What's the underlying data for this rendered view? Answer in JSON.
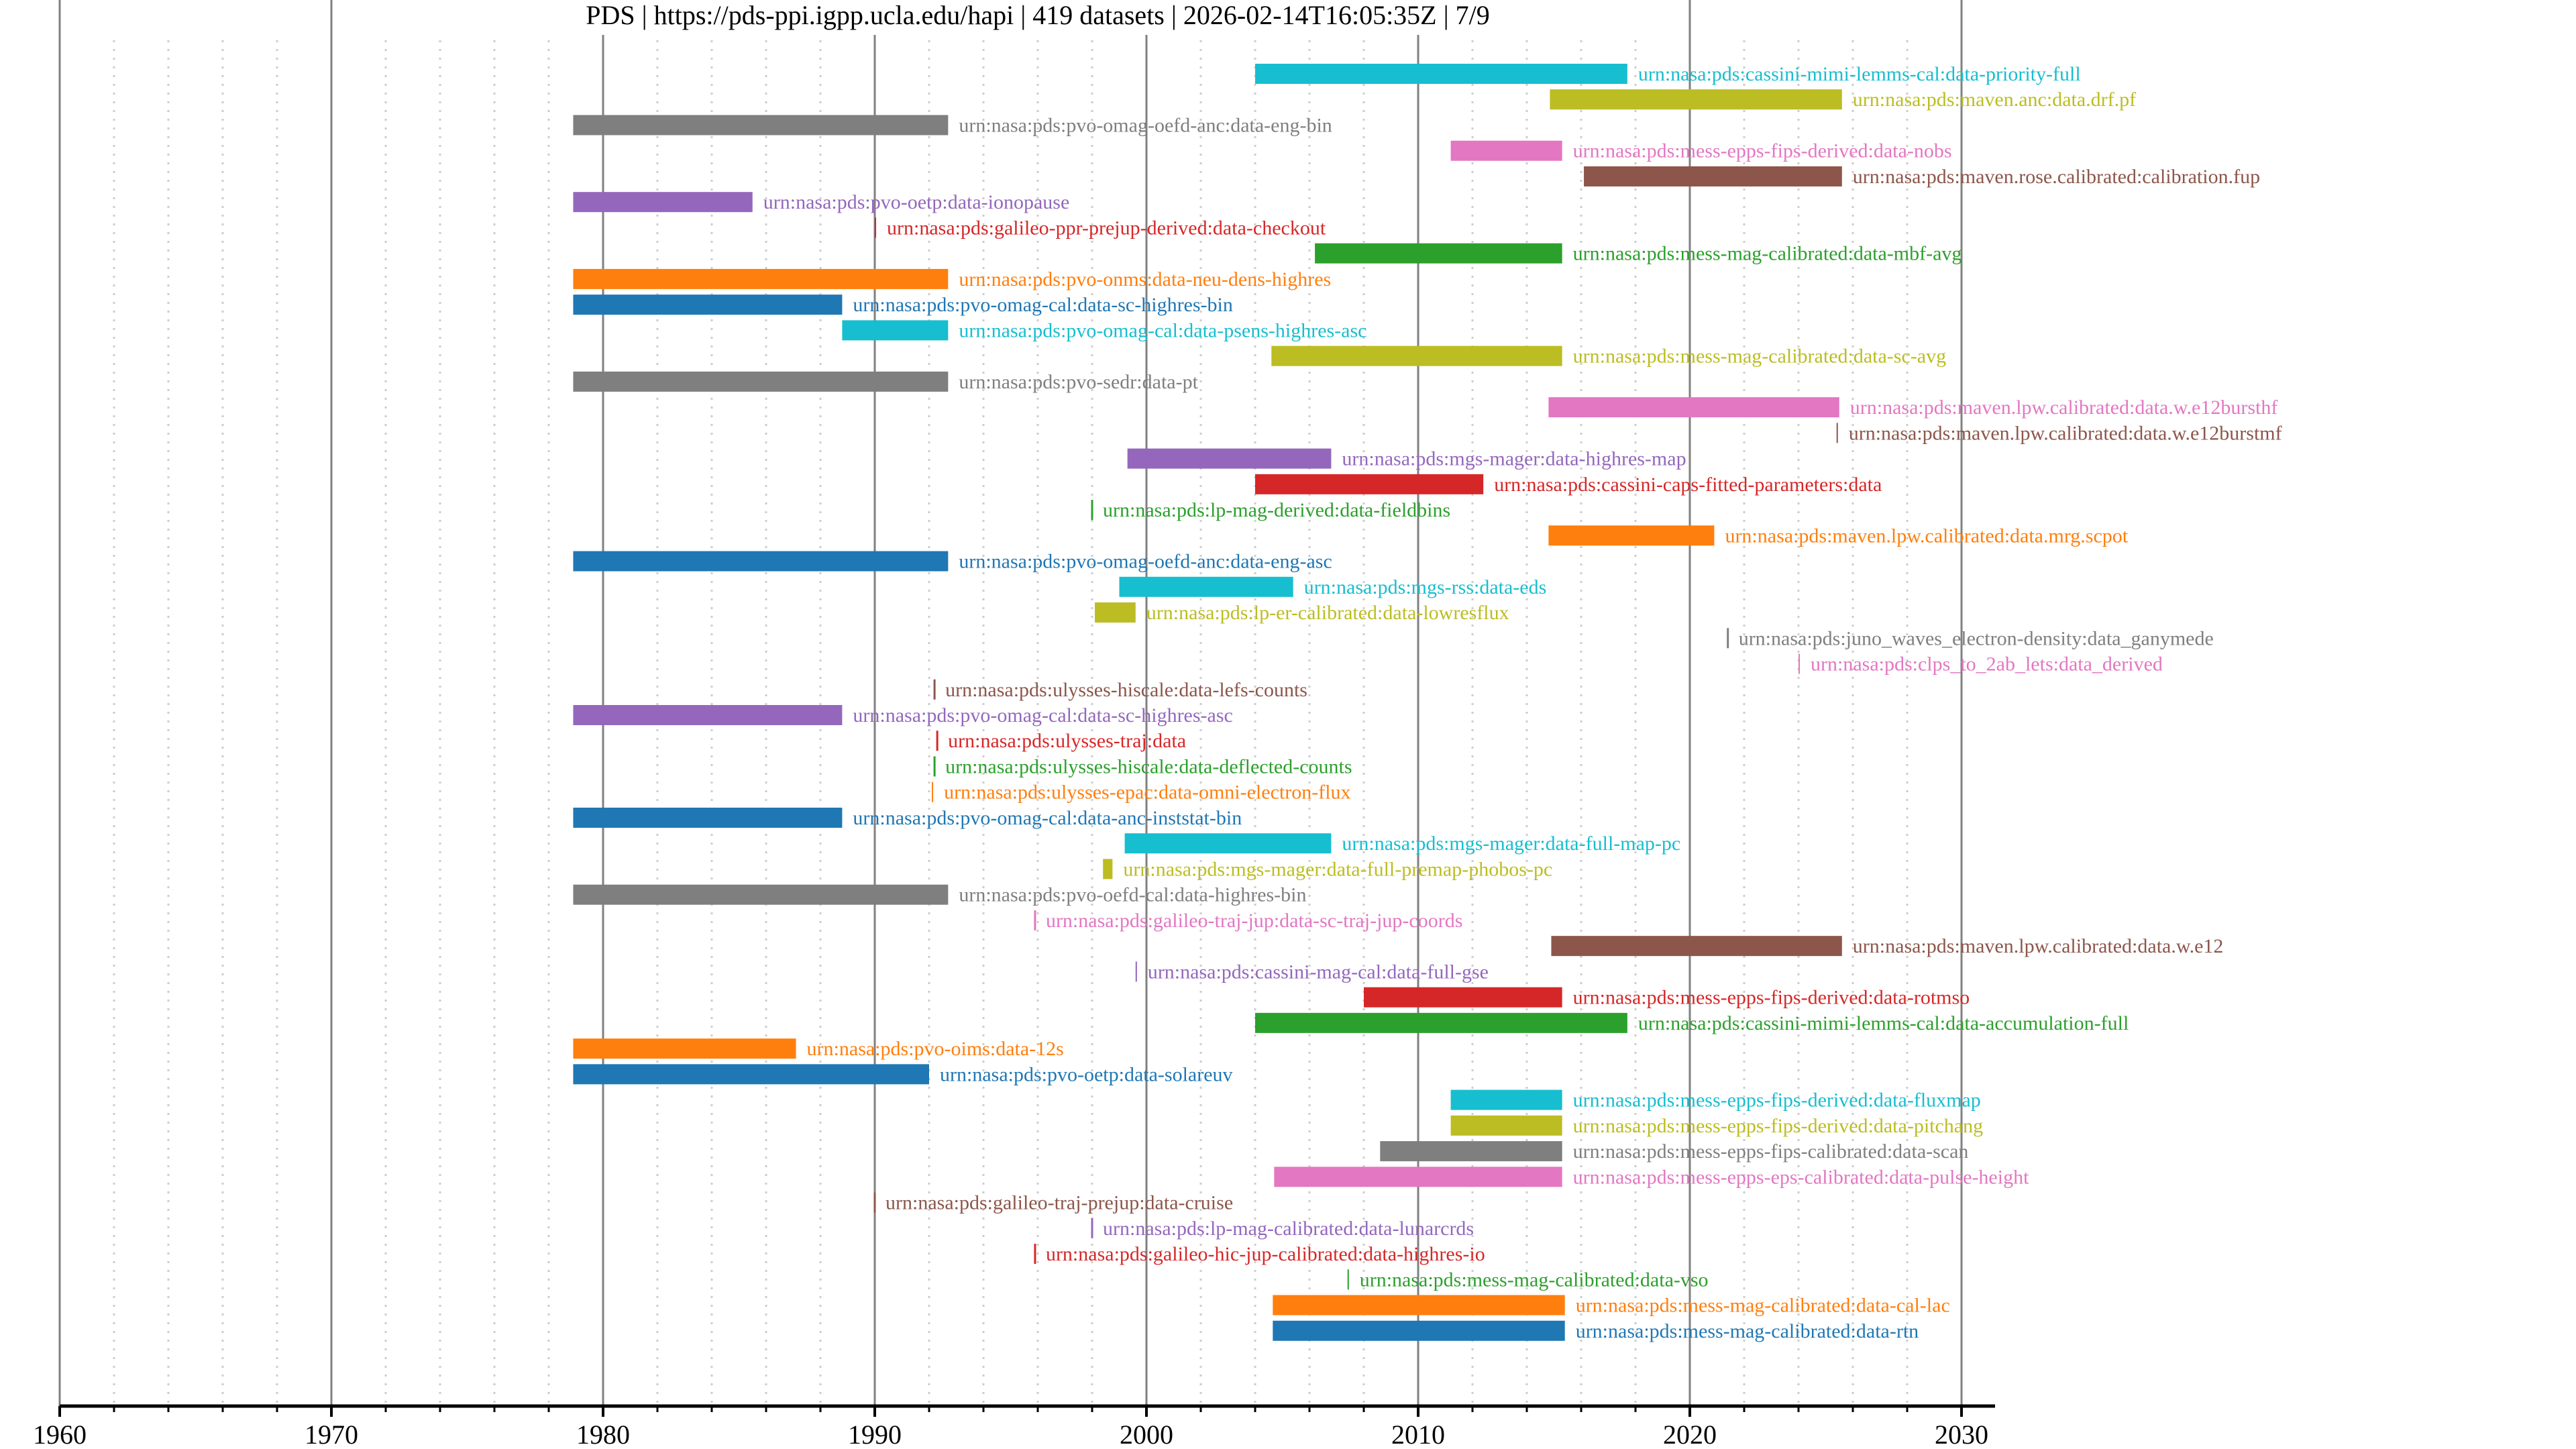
{
  "chart_data": {
    "type": "timeline",
    "title": "PDS | https://pds-ppi.igpp.ucla.edu/hapi | 419 datasets | 2026-02-14T16:05:35Z | 7/9",
    "xlabel": "",
    "ylabel": "",
    "xlim": [
      1960,
      2031
    ],
    "x_ticks": [
      "1960",
      "1970",
      "1980",
      "1990",
      "2000",
      "2010",
      "2020",
      "2030"
    ],
    "x_tick_values": [
      1960,
      1970,
      1980,
      1990,
      2000,
      2010,
      2020,
      2030
    ],
    "minor_tick_step_years": 2,
    "grid": true,
    "palette": [
      "#1f77b4",
      "#ff7f0e",
      "#2ca02c",
      "#d62728",
      "#9467bd",
      "#8c564b",
      "#e377c2",
      "#7f7f7f",
      "#bcbd22",
      "#17becf"
    ],
    "series": [
      {
        "name": "urn:nasa:pds:cassini-mimi-lemms-cal:data-priority-full",
        "start": 2004.0,
        "end": 2017.7,
        "color": "#17becf"
      },
      {
        "name": "urn:nasa:pds:maven.anc:data.drf.pf",
        "start": 2014.85,
        "end": 2025.6,
        "color": "#bcbd22"
      },
      {
        "name": "urn:nasa:pds:pvo-omag-oefd-anc:data-eng-bin",
        "start": 1978.9,
        "end": 1992.7,
        "color": "#7f7f7f"
      },
      {
        "name": "urn:nasa:pds:mess-epps-fips-derived:data-nobs",
        "start": 2011.2,
        "end": 2015.3,
        "color": "#e377c2"
      },
      {
        "name": "urn:nasa:pds:maven.rose.calibrated:calibration.fup",
        "start": 2016.1,
        "end": 2025.6,
        "color": "#8c564b"
      },
      {
        "name": "urn:nasa:pds:pvo-oetp:data-ionopause",
        "start": 1978.9,
        "end": 1985.5,
        "color": "#9467bd"
      },
      {
        "name": "urn:nasa:pds:galileo-ppr-prejup-derived:data-checkout",
        "start": 1990.0,
        "end": 1990.05,
        "color": "#d62728"
      },
      {
        "name": "urn:nasa:pds:mess-mag-calibrated:data-mbf-avg",
        "start": 2006.2,
        "end": 2015.3,
        "color": "#2ca02c"
      },
      {
        "name": "urn:nasa:pds:pvo-onms:data-neu-dens-highres",
        "start": 1978.9,
        "end": 1992.7,
        "color": "#ff7f0e"
      },
      {
        "name": "urn:nasa:pds:pvo-omag-cal:data-sc-highres-bin",
        "start": 1978.9,
        "end": 1988.8,
        "color": "#1f77b4"
      },
      {
        "name": "urn:nasa:pds:pvo-omag-cal:data-psens-highres-asc",
        "start": 1988.8,
        "end": 1992.7,
        "color": "#17becf"
      },
      {
        "name": "urn:nasa:pds:mess-mag-calibrated:data-sc-avg",
        "start": 2004.6,
        "end": 2015.3,
        "color": "#bcbd22"
      },
      {
        "name": "urn:nasa:pds:pvo-sedr:data-pt",
        "start": 1978.9,
        "end": 1992.7,
        "color": "#7f7f7f"
      },
      {
        "name": "urn:nasa:pds:maven.lpw.calibrated:data.w.e12bursthf",
        "start": 2014.8,
        "end": 2025.5,
        "color": "#e377c2"
      },
      {
        "name": "urn:nasa:pds:maven.lpw.calibrated:data.w.e12burstmf",
        "start": 2025.4,
        "end": 2025.45,
        "color": "#8c564b"
      },
      {
        "name": "urn:nasa:pds:mgs-mager:data-highres-map",
        "start": 1999.3,
        "end": 2006.8,
        "color": "#9467bd"
      },
      {
        "name": "urn:nasa:pds:cassini-caps-fitted-parameters:data",
        "start": 2004.0,
        "end": 2012.4,
        "color": "#d62728"
      },
      {
        "name": "urn:nasa:pds:lp-mag-derived:data-fieldbins",
        "start": 1998.0,
        "end": 1998.0,
        "color": "#2ca02c"
      },
      {
        "name": "urn:nasa:pds:maven.lpw.calibrated:data.mrg.scpot",
        "start": 2014.8,
        "end": 2020.9,
        "color": "#ff7f0e"
      },
      {
        "name": "urn:nasa:pds:pvo-omag-oefd-anc:data-eng-asc",
        "start": 1978.9,
        "end": 1992.7,
        "color": "#1f77b4"
      },
      {
        "name": "urn:nasa:pds:mgs-rss:data-eds",
        "start": 1999.0,
        "end": 2005.4,
        "color": "#17becf"
      },
      {
        "name": "urn:nasa:pds:lp-er-calibrated:data-lowresflux",
        "start": 1998.1,
        "end": 1999.6,
        "color": "#bcbd22"
      },
      {
        "name": "urn:nasa:pds:juno_waves_electron-density:data_ganymede",
        "start": 2021.4,
        "end": 2021.4,
        "color": "#7f7f7f"
      },
      {
        "name": "urn:nasa:pds:clps_to_2ab_lets:data_derived",
        "start": 2024.0,
        "end": 2024.05,
        "color": "#e377c2"
      },
      {
        "name": "urn:nasa:pds:ulysses-hiscale:data-lefs-counts",
        "start": 1992.2,
        "end": 1992.2,
        "color": "#8c564b"
      },
      {
        "name": "urn:nasa:pds:pvo-omag-cal:data-sc-highres-asc",
        "start": 1978.9,
        "end": 1988.8,
        "color": "#9467bd"
      },
      {
        "name": "urn:nasa:pds:ulysses-traj:data",
        "start": 1992.3,
        "end": 1992.3,
        "color": "#d62728"
      },
      {
        "name": "urn:nasa:pds:ulysses-hiscale:data-deflected-counts",
        "start": 1992.2,
        "end": 1992.2,
        "color": "#2ca02c"
      },
      {
        "name": "urn:nasa:pds:ulysses-epac:data-omni-electron-flux",
        "start": 1992.1,
        "end": 1992.15,
        "color": "#ff7f0e"
      },
      {
        "name": "urn:nasa:pds:pvo-omag-cal:data-anc-inststat-bin",
        "start": 1978.9,
        "end": 1988.8,
        "color": "#1f77b4"
      },
      {
        "name": "urn:nasa:pds:mgs-mager:data-full-map-pc",
        "start": 1999.2,
        "end": 2006.8,
        "color": "#17becf"
      },
      {
        "name": "urn:nasa:pds:mgs-mager:data-full-premap-phobos-pc",
        "start": 1998.4,
        "end": 1998.75,
        "color": "#bcbd22"
      },
      {
        "name": "urn:nasa:pds:pvo-oefd-cal:data-highres-bin",
        "start": 1978.9,
        "end": 1992.7,
        "color": "#7f7f7f"
      },
      {
        "name": "urn:nasa:pds:galileo-traj-jup:data-sc-traj-jup-coords",
        "start": 1995.9,
        "end": 1995.9,
        "color": "#e377c2"
      },
      {
        "name": "urn:nasa:pds:maven.lpw.calibrated:data.w.e12",
        "start": 2014.9,
        "end": 2025.6,
        "color": "#8c564b"
      },
      {
        "name": "urn:nasa:pds:cassini-mag-cal:data-full-gse",
        "start": 1999.6,
        "end": 1999.65,
        "color": "#9467bd"
      },
      {
        "name": "urn:nasa:pds:mess-epps-fips-derived:data-rotmso",
        "start": 2008.0,
        "end": 2015.3,
        "color": "#d62728"
      },
      {
        "name": "urn:nasa:pds:cassini-mimi-lemms-cal:data-accumulation-full",
        "start": 2004.0,
        "end": 2017.7,
        "color": "#2ca02c"
      },
      {
        "name": "urn:nasa:pds:pvo-oims:data-12s",
        "start": 1978.9,
        "end": 1987.1,
        "color": "#ff7f0e"
      },
      {
        "name": "urn:nasa:pds:pvo-oetp:data-solareuv",
        "start": 1978.9,
        "end": 1992.0,
        "color": "#1f77b4"
      },
      {
        "name": "urn:nasa:pds:mess-epps-fips-derived:data-fluxmap",
        "start": 2011.2,
        "end": 2015.3,
        "color": "#17becf"
      },
      {
        "name": "urn:nasa:pds:mess-epps-fips-derived:data-pitchang",
        "start": 2011.2,
        "end": 2015.3,
        "color": "#bcbd22"
      },
      {
        "name": "urn:nasa:pds:mess-epps-fips-calibrated:data-scan",
        "start": 2008.6,
        "end": 2015.3,
        "color": "#7f7f7f"
      },
      {
        "name": "urn:nasa:pds:mess-epps-eps-calibrated:data-pulse-height",
        "start": 2004.7,
        "end": 2015.3,
        "color": "#e377c2"
      },
      {
        "name": "urn:nasa:pds:galileo-traj-prejup:data-cruise",
        "start": 1990.0,
        "end": 1990.0,
        "color": "#8c564b"
      },
      {
        "name": "urn:nasa:pds:lp-mag-calibrated:data-lunarcrds",
        "start": 1998.0,
        "end": 1998.0,
        "color": "#9467bd"
      },
      {
        "name": "urn:nasa:pds:galileo-hic-jup-calibrated:data-highres-io",
        "start": 1995.9,
        "end": 1995.9,
        "color": "#d62728"
      },
      {
        "name": "urn:nasa:pds:mess-mag-calibrated:data-vso",
        "start": 2007.4,
        "end": 2007.45,
        "color": "#2ca02c"
      },
      {
        "name": "urn:nasa:pds:mess-mag-calibrated:data-cal-lac",
        "start": 2004.65,
        "end": 2015.4,
        "color": "#ff7f0e"
      },
      {
        "name": "urn:nasa:pds:mess-mag-calibrated:data-rtn",
        "start": 2004.65,
        "end": 2015.4,
        "color": "#1f77b4"
      }
    ]
  }
}
